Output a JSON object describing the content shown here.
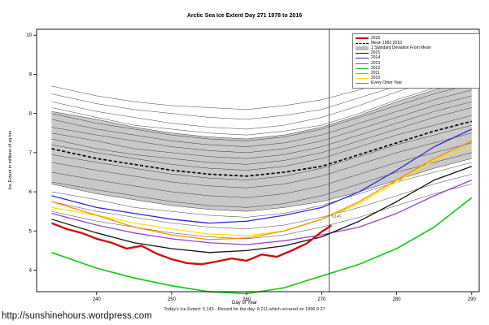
{
  "url": "http://sunshinehours.wordpress.com",
  "footer": {
    "text": "Today's Ice Extent: 5.143  -  Record for the day: 8.211 which occured on 1996 9 27"
  },
  "chart_data": {
    "type": "line",
    "title": "Arctic Sea Ice Extent Day 271 1978 to 2016",
    "xlabel": "Day of Year",
    "ylabel": "Ice Extent in millions of sq km",
    "xlim": [
      232,
      291
    ],
    "ylim": [
      3.45,
      10.15
    ],
    "xticks": [
      240,
      250,
      260,
      270,
      280,
      290
    ],
    "yticks": [
      4,
      5,
      6,
      7,
      8,
      9,
      10
    ],
    "grid": false,
    "legend_position": "top-right",
    "vline_x": 271,
    "annotation": {
      "x": 271,
      "y": 5.35,
      "text": "5.143"
    },
    "x": [
      234,
      240,
      245,
      250,
      255,
      260,
      265,
      270,
      275,
      280,
      285,
      290
    ],
    "band": {
      "label": "1 Standard Deviation From Mean",
      "color": "#C9C9C9",
      "upper": [
        8.05,
        7.85,
        7.65,
        7.5,
        7.4,
        7.35,
        7.45,
        7.65,
        7.95,
        8.3,
        8.6,
        8.85
      ],
      "lower": [
        6.2,
        5.95,
        5.8,
        5.65,
        5.55,
        5.5,
        5.6,
        5.75,
        6.0,
        6.3,
        6.6,
        6.85
      ]
    },
    "mean": {
      "label": "Mean 1981-2010",
      "color": "#000000",
      "values": [
        7.1,
        6.85,
        6.7,
        6.55,
        6.45,
        6.4,
        6.5,
        6.65,
        6.95,
        7.25,
        7.55,
        7.8
      ]
    },
    "series": [
      {
        "name": "2010",
        "color": "#FFE400",
        "width": 1.3,
        "values": [
          5.6,
          5.4,
          5.2,
          5.05,
          4.92,
          4.88,
          5.0,
          5.3,
          5.7,
          6.25,
          6.8,
          7.15
        ]
      },
      {
        "name": "2011",
        "color": "#FF8C00",
        "width": 1.3,
        "values": [
          5.75,
          5.4,
          5.1,
          4.9,
          4.78,
          4.82,
          5.0,
          5.3,
          5.75,
          6.3,
          6.85,
          7.3
        ]
      },
      {
        "name": "2013",
        "color": "#9A41D6",
        "width": 1.3,
        "values": [
          5.45,
          5.15,
          4.95,
          4.8,
          4.7,
          4.65,
          4.75,
          4.9,
          5.1,
          5.45,
          5.9,
          6.3
        ]
      },
      {
        "name": "2014",
        "color": "#2828E0",
        "width": 1.3,
        "values": [
          5.9,
          5.6,
          5.45,
          5.3,
          5.2,
          5.25,
          5.4,
          5.6,
          6.0,
          6.55,
          7.15,
          7.6
        ]
      },
      {
        "name": "2015",
        "color": "#111111",
        "width": 1.3,
        "values": [
          5.3,
          4.95,
          4.7,
          4.55,
          4.45,
          4.5,
          4.62,
          4.85,
          5.25,
          5.75,
          6.3,
          6.65
        ]
      },
      {
        "name": "2012",
        "color": "#19CC19",
        "width": 1.7,
        "values": [
          4.45,
          4.05,
          3.8,
          3.6,
          3.45,
          3.4,
          3.55,
          3.85,
          4.15,
          4.55,
          5.1,
          5.85
        ]
      }
    ],
    "current": {
      "name": "2016",
      "color": "#CC1111",
      "width": 2.4,
      "x": [
        234,
        236,
        238,
        240,
        242,
        244,
        246,
        248,
        250,
        252,
        254,
        256,
        258,
        260,
        262,
        264,
        266,
        268,
        270,
        271.3
      ],
      "y": [
        5.2,
        5.05,
        4.95,
        4.8,
        4.7,
        4.55,
        4.62,
        4.42,
        4.28,
        4.18,
        4.15,
        4.22,
        4.3,
        4.24,
        4.4,
        4.34,
        4.5,
        4.68,
        4.98,
        5.14
      ]
    },
    "other_years": {
      "label": "Every Other Year",
      "color": "#2A2A2A",
      "width": 0.45,
      "lines": [
        [
          8.7,
          8.45,
          8.3,
          8.2,
          8.15,
          8.1,
          8.2,
          8.35,
          8.6,
          8.9,
          9.2,
          9.5
        ],
        [
          8.5,
          8.25,
          8.1,
          8.0,
          7.9,
          7.85,
          7.95,
          8.1,
          8.4,
          8.7,
          9.0,
          9.3
        ],
        [
          8.3,
          8.05,
          7.9,
          7.75,
          7.65,
          7.6,
          7.7,
          7.9,
          8.2,
          8.55,
          8.85,
          9.1
        ],
        [
          8.15,
          7.9,
          7.7,
          7.6,
          7.5,
          7.45,
          7.55,
          7.7,
          8.0,
          8.35,
          8.65,
          8.95
        ],
        [
          8.0,
          7.75,
          7.6,
          7.45,
          7.35,
          7.3,
          7.4,
          7.6,
          7.9,
          8.2,
          8.5,
          8.75
        ],
        [
          7.85,
          7.6,
          7.45,
          7.3,
          7.2,
          7.15,
          7.25,
          7.45,
          7.75,
          8.05,
          8.35,
          8.6
        ],
        [
          7.65,
          7.45,
          7.3,
          7.15,
          7.05,
          7.0,
          7.1,
          7.3,
          7.6,
          7.9,
          8.2,
          8.45
        ],
        [
          7.5,
          7.3,
          7.1,
          7.0,
          6.9,
          6.85,
          6.95,
          7.15,
          7.45,
          7.75,
          8.05,
          8.3
        ],
        [
          7.35,
          7.1,
          6.95,
          6.85,
          6.75,
          6.7,
          6.8,
          7.0,
          7.3,
          7.6,
          7.9,
          8.15
        ],
        [
          7.2,
          7.0,
          6.85,
          6.7,
          6.6,
          6.55,
          6.65,
          6.85,
          7.15,
          7.45,
          7.7,
          7.95
        ],
        [
          6.95,
          6.75,
          6.6,
          6.45,
          6.35,
          6.3,
          6.4,
          6.6,
          6.9,
          7.2,
          7.45,
          7.7
        ],
        [
          6.75,
          6.55,
          6.4,
          6.25,
          6.15,
          6.1,
          6.2,
          6.4,
          6.7,
          7.0,
          7.25,
          7.5
        ],
        [
          6.5,
          6.3,
          6.15,
          6.0,
          5.9,
          5.85,
          5.95,
          6.15,
          6.45,
          6.75,
          7.0,
          7.25
        ],
        [
          6.25,
          6.05,
          5.9,
          5.75,
          5.65,
          5.6,
          5.7,
          5.9,
          6.2,
          6.5,
          6.75,
          7.0
        ],
        [
          6.0,
          5.8,
          5.6,
          5.5,
          5.4,
          5.35,
          5.45,
          5.65,
          5.95,
          6.25,
          6.5,
          6.75
        ],
        [
          5.75,
          5.5,
          5.35,
          5.2,
          5.1,
          5.05,
          5.15,
          5.35,
          5.6,
          5.9,
          6.2,
          6.45
        ],
        [
          5.5,
          5.25,
          5.1,
          4.95,
          4.85,
          4.8,
          4.9,
          5.1,
          5.35,
          5.65,
          5.95,
          6.2
        ]
      ]
    },
    "legend": [
      {
        "label": "2016",
        "color": "#CC1111",
        "style": "thick"
      },
      {
        "label": "Mean 1981-2010",
        "color": "#000000",
        "style": "dashed"
      },
      {
        "label": "1 Standard Deviation From Mean",
        "color": "#BEBEBE",
        "style": "band"
      },
      {
        "label": "2015",
        "color": "#111111",
        "style": "line"
      },
      {
        "label": "2014",
        "color": "#2828E0",
        "style": "line"
      },
      {
        "label": "2013",
        "color": "#9A41D6",
        "style": "line"
      },
      {
        "label": "2012",
        "color": "#19CC19",
        "style": "line"
      },
      {
        "label": "2011",
        "color": "#FF8C00",
        "style": "line"
      },
      {
        "label": "2010",
        "color": "#FFE400",
        "style": "line"
      },
      {
        "label": "Every Other Year",
        "color": "#777777",
        "style": "thin"
      }
    ]
  }
}
